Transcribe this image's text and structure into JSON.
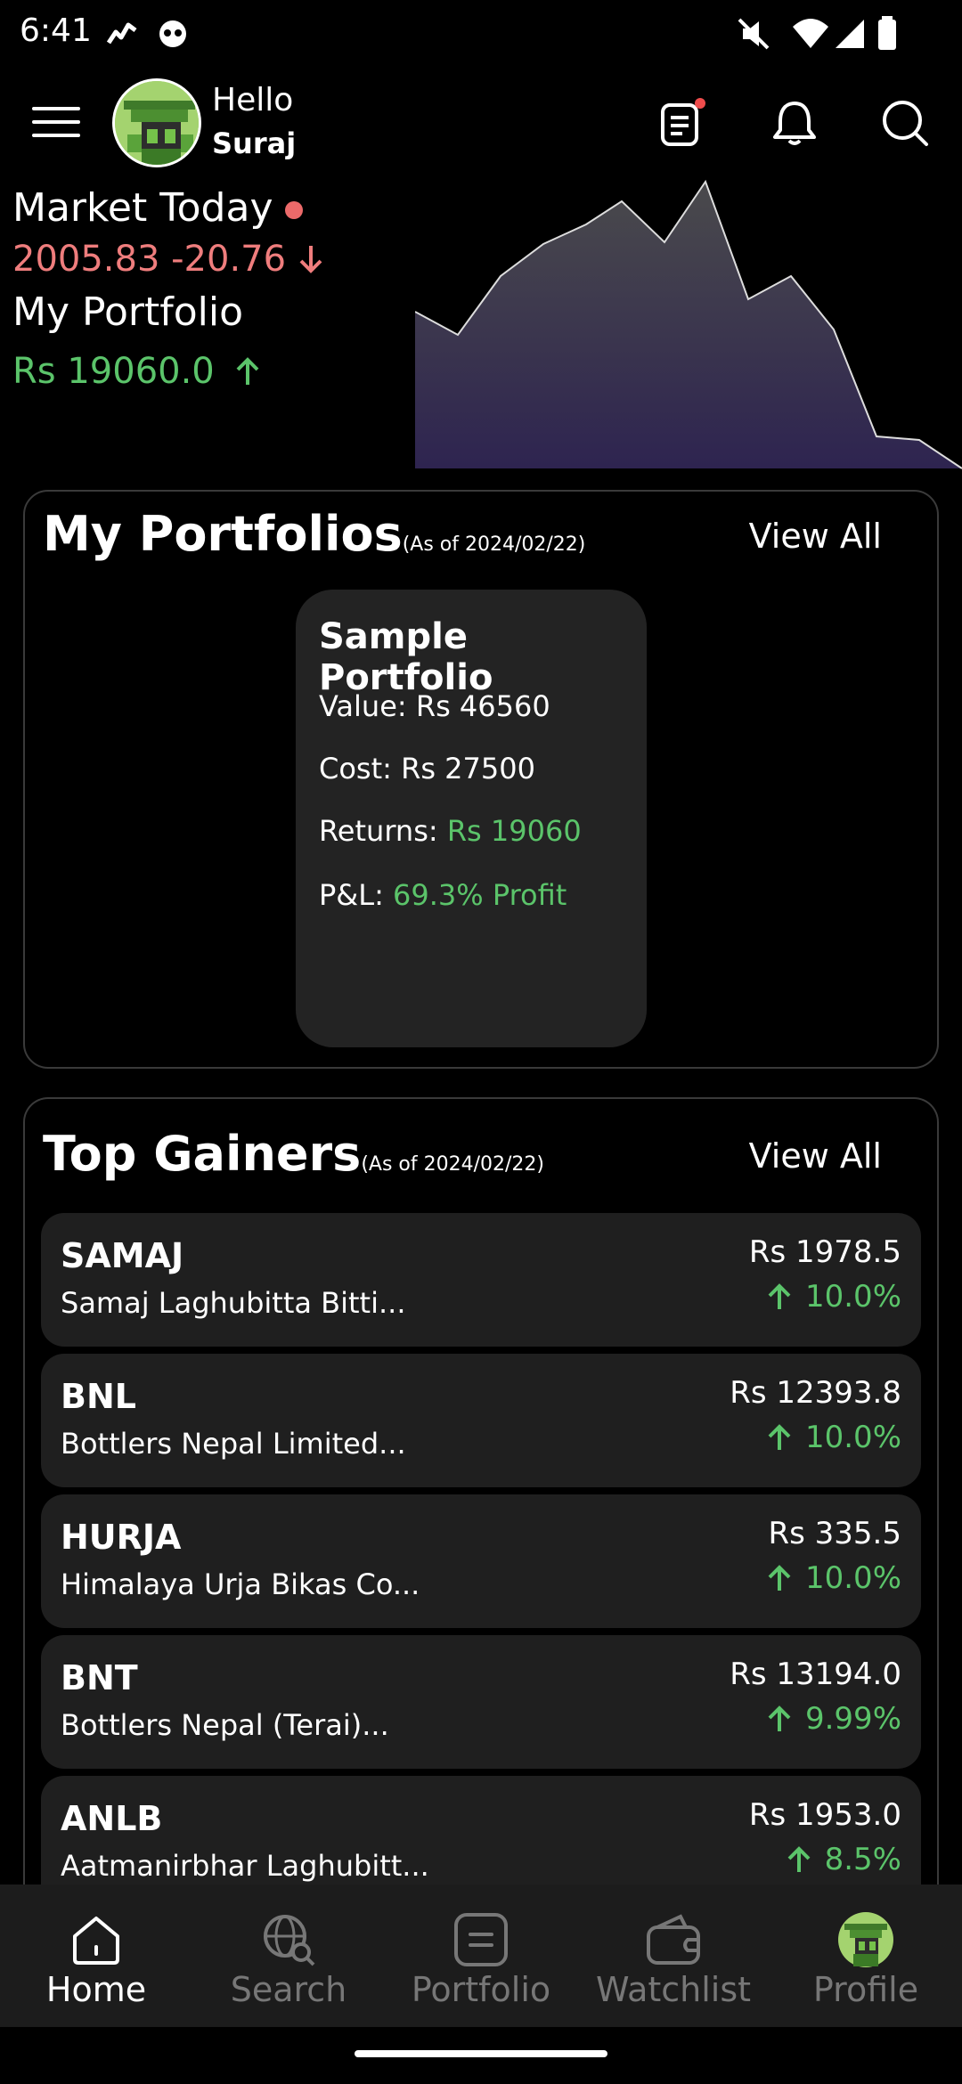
{
  "status_bar": {
    "time": "6:41"
  },
  "header": {
    "greeting": "Hello",
    "username": "Suraj"
  },
  "market": {
    "title": "Market Today",
    "value": "2005.83 -20.76",
    "portfolio_title": "My Portfolio",
    "portfolio_value": "Rs 19060.0",
    "colors": {
      "negative": "#ef7d7d",
      "positive": "#5bc46a"
    }
  },
  "portfolios": {
    "title": "My Portfolios",
    "as_of": "(As of 2024/02/22)",
    "view_all": "View All",
    "card": {
      "name": "Sample Portfolio",
      "value_label": "Value: Rs  46560",
      "cost_label": "Cost: Rs  27500",
      "returns_label": "Returns: ",
      "returns_value": "Rs 19060",
      "pl_label": "P&L: ",
      "pl_value": "69.3% Profit"
    }
  },
  "top_gainers": {
    "title": "Top Gainers",
    "as_of": "(As of 2024/02/22)",
    "view_all": "View All",
    "items": [
      {
        "symbol": "SAMAJ",
        "name": "Samaj Laghubitta Bitti...",
        "price": "Rs 1978.5",
        "change": "10.0%"
      },
      {
        "symbol": "BNL",
        "name": "Bottlers Nepal Limited...",
        "price": "Rs 12393.8",
        "change": "10.0%"
      },
      {
        "symbol": "HURJA",
        "name": "Himalaya Urja Bikas Co...",
        "price": "Rs 335.5",
        "change": "10.0%"
      },
      {
        "symbol": "BNT",
        "name": "Bottlers Nepal (Terai)...",
        "price": "Rs 13194.0",
        "change": "9.99%"
      },
      {
        "symbol": "ANLB",
        "name": "Aatmanirbhar Laghubitt...",
        "price": "Rs 1953.0",
        "change": "8.5%"
      }
    ]
  },
  "nav": {
    "items": [
      {
        "label": "Home",
        "icon": "home-icon",
        "active": true
      },
      {
        "label": "Search",
        "icon": "globe-search-icon",
        "active": false
      },
      {
        "label": "Portfolio",
        "icon": "portfolio-icon",
        "active": false
      },
      {
        "label": "Watchlist",
        "icon": "wallet-icon",
        "active": false
      },
      {
        "label": "Profile",
        "icon": "avatar-icon",
        "active": false
      }
    ]
  }
}
